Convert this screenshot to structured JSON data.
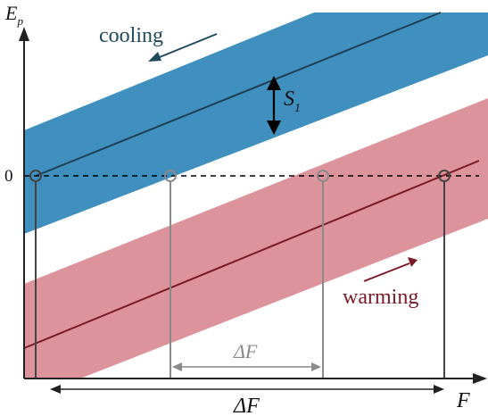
{
  "axes": {
    "y_label": "E",
    "y_label_sub": "p",
    "x_label": "F",
    "zero_label": "0"
  },
  "annotations": {
    "cooling": "cooling",
    "warming": "warming",
    "separation": "S",
    "separation_sub": "1",
    "delta_inner": "ΔF",
    "delta_outer": "ΔF"
  },
  "colors": {
    "cooling_band": "#3f8fbf",
    "cooling_line": "#1f3f55",
    "cooling_text": "#1f4a5e",
    "warming_band": "#dd939b",
    "warming_line": "#7a1a26",
    "warming_text": "#7a1a26",
    "grey_line": "#8a8a8a",
    "dark_grey_line": "#444444",
    "axis": "#222222"
  }
}
